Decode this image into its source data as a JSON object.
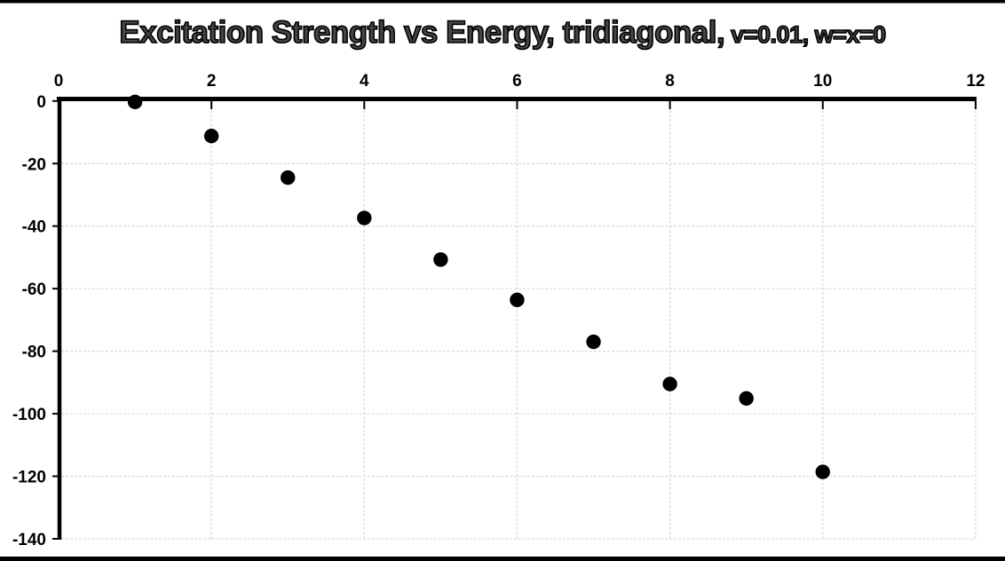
{
  "window": {
    "background": "#ffffff",
    "top_border_color": "#000000",
    "bottom_border_color": "#000000"
  },
  "chart_data": {
    "type": "scatter",
    "title": "Excitation Strength vs Energy, tridiagonal, v=0.01, w=x=0",
    "title_main": "Excitation Strength vs Energy, tridiagonal,",
    "title_params": "v=0.01, w=x=0",
    "x": [
      1,
      2,
      3,
      4,
      5,
      6,
      7,
      8,
      9,
      10
    ],
    "y": [
      -0.3,
      -11.2,
      -24.5,
      -37.4,
      -50.7,
      -63.6,
      -77.0,
      -90.5,
      -95.1,
      -118.6
    ],
    "xlabel": "",
    "ylabel": "",
    "xlim": [
      0,
      12
    ],
    "ylim": [
      -140,
      0
    ],
    "xticks": [
      0,
      2,
      4,
      6,
      8,
      10,
      12
    ],
    "yticks": [
      0,
      -20,
      -40,
      -60,
      -80,
      -100,
      -120,
      -140
    ],
    "x_axis_position": "top",
    "grid": true,
    "legend": false,
    "marker": "circle",
    "marker_color": "#000000",
    "axis_color": "#000000",
    "gridline_color": "#d9d9d9",
    "title_fill_color": "#454545",
    "title_outline_color": "#000000"
  }
}
